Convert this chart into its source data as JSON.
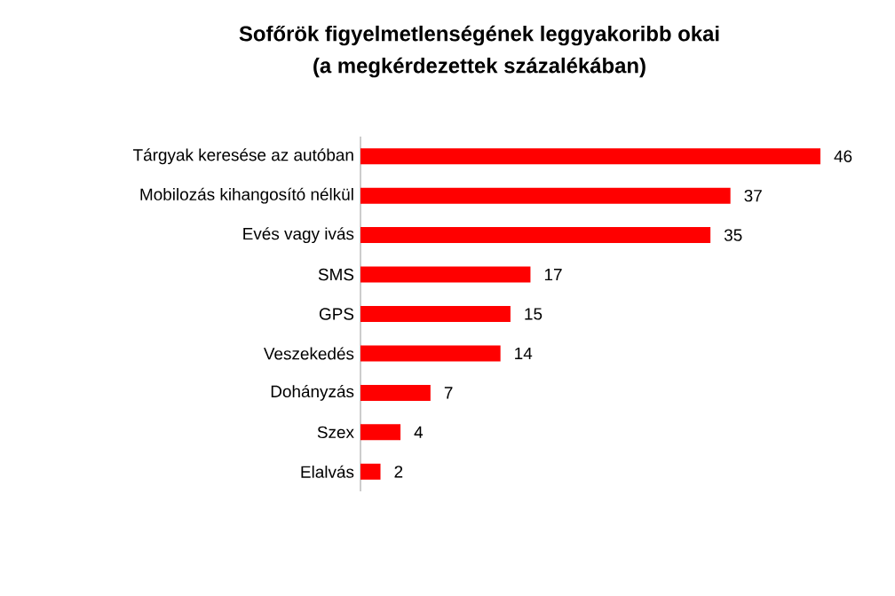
{
  "chart_data": {
    "type": "bar",
    "orientation": "horizontal",
    "title": "Sofőrök figyelmetlenségének leggyakoribb okai",
    "subtitle": "(a megkérdezettek százalékában)",
    "categories": [
      "Tárgyak keresése az autóban",
      "Mobilozás kihangosító nélkül",
      "Evés vagy ivás",
      "SMS",
      "GPS",
      "Veszekedés",
      "Dohányzás",
      "Szex",
      "Elalvás"
    ],
    "values": [
      46,
      37,
      35,
      17,
      15,
      14,
      7,
      4,
      2
    ],
    "color": "#ff0000",
    "data_labels": true
  }
}
